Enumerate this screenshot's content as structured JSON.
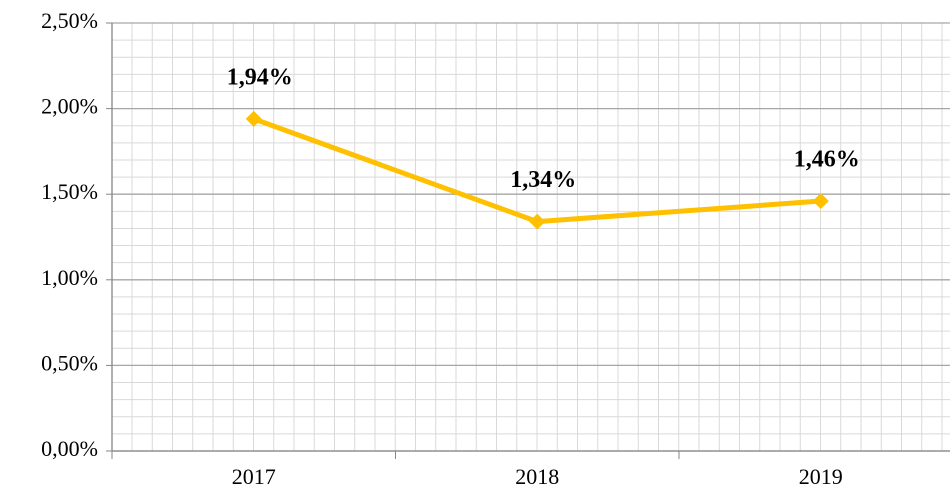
{
  "chart_data": {
    "type": "line",
    "categories": [
      "2017",
      "2018",
      "2019"
    ],
    "series": [
      {
        "name": "Series 1",
        "color": "#ffc000",
        "values": [
          1.94,
          1.34,
          1.46
        ],
        "value_labels": [
          "1,94%",
          "1,34%",
          "1,46%"
        ]
      }
    ],
    "ylim": [
      0,
      2.5
    ],
    "yticks": [
      {
        "value": 0,
        "label": "0,00%"
      },
      {
        "value": 0.5,
        "label": "0,50%"
      },
      {
        "value": 1,
        "label": "1,00%"
      },
      {
        "value": 1.5,
        "label": "1,50%"
      },
      {
        "value": 2,
        "label": "2,00%"
      },
      {
        "value": 2.5,
        "label": "2,50%"
      }
    ],
    "grid": true
  }
}
